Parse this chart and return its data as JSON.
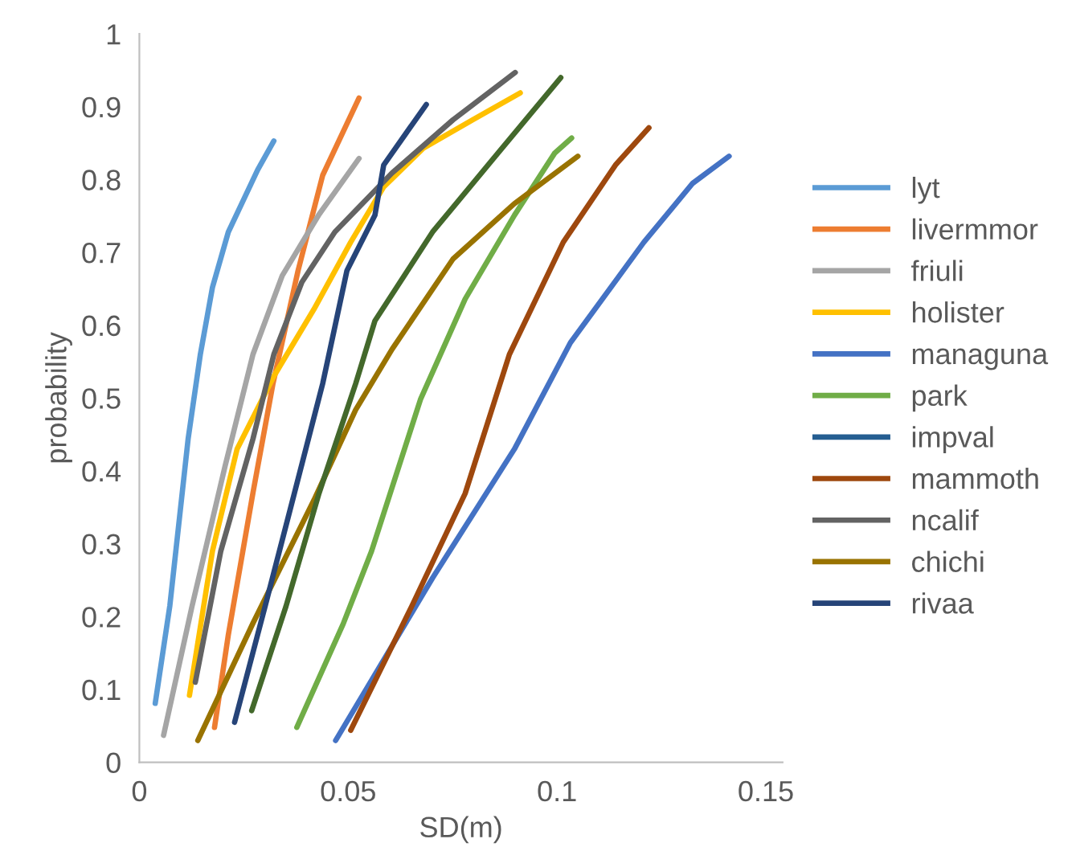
{
  "chart_data": {
    "type": "line",
    "xlabel": "SD(m)",
    "ylabel": "probability",
    "xlim": [
      0,
      0.154
    ],
    "xticks": [
      0,
      0.05,
      0.1,
      0.15
    ],
    "ylim": [
      0,
      1
    ],
    "yticks": [
      0,
      0.1,
      0.2,
      0.3,
      0.4,
      0.5,
      0.6,
      0.7,
      0.8,
      0.9,
      1
    ],
    "grid": false,
    "legend": "right",
    "marker": "none",
    "line_style": "solid",
    "series": [
      {
        "name": "lyt",
        "color": "#5b9bd5",
        "x": [
          0.0038,
          0.0073,
          0.0117,
          0.0146,
          0.0175,
          0.0213,
          0.0283,
          0.0322
        ],
        "values": [
          0.081,
          0.215,
          0.445,
          0.56,
          0.652,
          0.728,
          0.813,
          0.853
        ]
      },
      {
        "name": "livermmor",
        "color": "#ed7d31",
        "x": [
          0.018,
          0.0213,
          0.0272,
          0.032,
          0.038,
          0.0439,
          0.0526
        ],
        "values": [
          0.048,
          0.175,
          0.37,
          0.52,
          0.675,
          0.806,
          0.912
        ]
      },
      {
        "name": "friuli",
        "color": "#a5a5a5",
        "x": [
          0.0058,
          0.0126,
          0.0205,
          0.0272,
          0.0342,
          0.043,
          0.0526
        ],
        "values": [
          0.037,
          0.214,
          0.406,
          0.56,
          0.668,
          0.752,
          0.829
        ]
      },
      {
        "name": "holister",
        "color": "#ffc000",
        "x": [
          0.012,
          0.0175,
          0.0234,
          0.0322,
          0.0418,
          0.0506,
          0.0585,
          0.068,
          0.0798,
          0.0912
        ],
        "values": [
          0.092,
          0.29,
          0.43,
          0.53,
          0.622,
          0.714,
          0.79,
          0.843,
          0.882,
          0.919
        ]
      },
      {
        "name": "managuna",
        "color": "#4472c4",
        "x": [
          0.047,
          0.0702,
          0.0898,
          0.1032,
          0.1208,
          0.1325,
          0.1412
        ],
        "values": [
          0.03,
          0.253,
          0.43,
          0.576,
          0.714,
          0.795,
          0.832
        ]
      },
      {
        "name": "park",
        "color": "#70ad47",
        "x": [
          0.0377,
          0.0488,
          0.0556,
          0.0673,
          0.078,
          0.0898,
          0.0994,
          0.1035
        ],
        "values": [
          0.048,
          0.19,
          0.29,
          0.498,
          0.636,
          0.751,
          0.836,
          0.857
        ]
      },
      {
        "name": "impval",
        "color": "#255e91"
      },
      {
        "name": "mammoth",
        "color": "#9e480e",
        "x": [
          0.0506,
          0.0652,
          0.078,
          0.0886,
          0.1015,
          0.114,
          0.122
        ],
        "values": [
          0.044,
          0.214,
          0.369,
          0.56,
          0.714,
          0.82,
          0.871
        ]
      },
      {
        "name": "ncalif",
        "color": "#636363",
        "x": [
          0.0134,
          0.0195,
          0.0272,
          0.0322,
          0.0389,
          0.0468,
          0.0605,
          0.0751,
          0.09
        ],
        "values": [
          0.11,
          0.29,
          0.444,
          0.56,
          0.659,
          0.728,
          0.809,
          0.882,
          0.947
        ]
      },
      {
        "name": "chichi",
        "color": "#997300",
        "x": [
          0.014,
          0.0272,
          0.0418,
          0.0518,
          0.0605,
          0.0751,
          0.0898,
          0.105
        ],
        "values": [
          0.03,
          0.191,
          0.36,
          0.484,
          0.567,
          0.691,
          0.767,
          0.832
        ]
      },
      {
        "name": "rivaa",
        "color": "#264478",
        "x": [
          0.0228,
          0.0301,
          0.0371,
          0.0439,
          0.0497,
          0.0564,
          0.0585,
          0.0687
        ],
        "values": [
          0.055,
          0.214,
          0.369,
          0.52,
          0.675,
          0.751,
          0.82,
          0.903
        ]
      },
      {
        "color": "#43682b",
        "x": [
          0.0269,
          0.0351,
          0.043,
          0.0518,
          0.0564,
          0.0702,
          0.0848,
          0.1009
        ],
        "values": [
          0.071,
          0.214,
          0.369,
          0.52,
          0.606,
          0.728,
          0.829,
          0.94
        ]
      }
    ]
  }
}
